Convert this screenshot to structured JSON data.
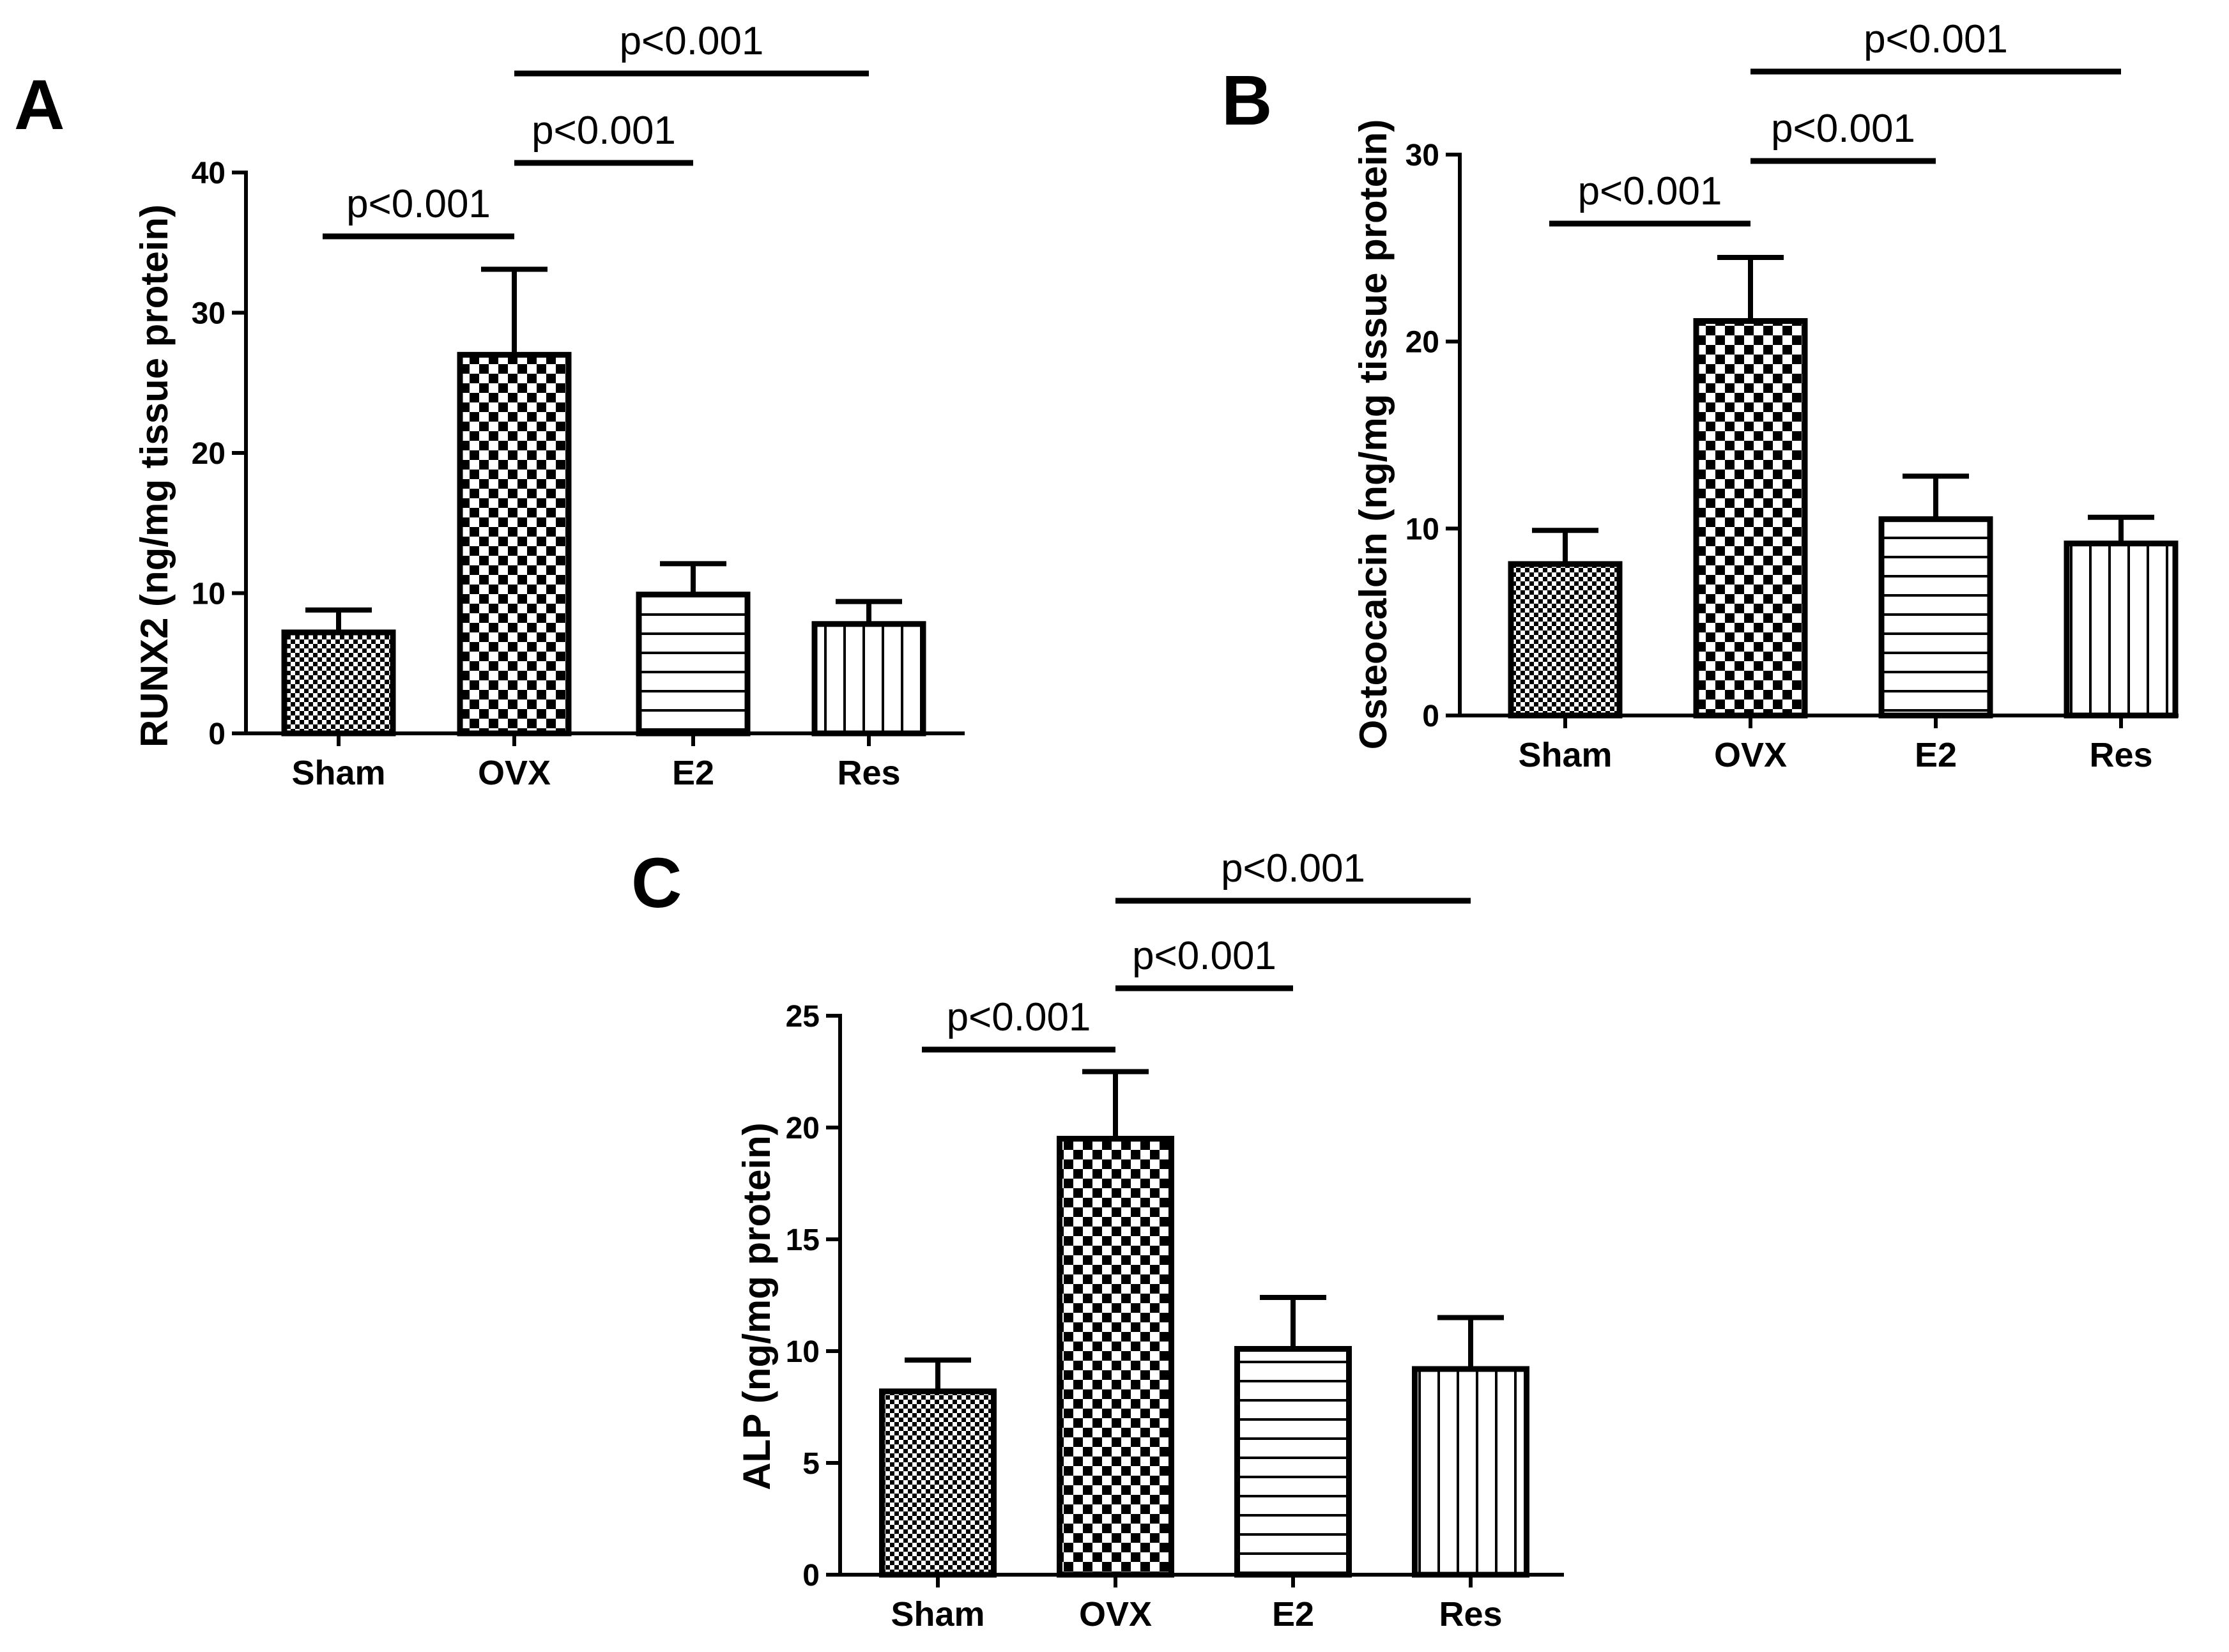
{
  "chart_data": [
    {
      "id": "A",
      "type": "bar",
      "panel_label": "A",
      "ylabel": "RUNX2 (ng/mg tissue protein)",
      "xlabel": "",
      "categories": [
        "Sham",
        "OVX",
        "E2",
        "Res"
      ],
      "values": [
        7.2,
        27.0,
        9.9,
        7.8
      ],
      "errors": [
        1.6,
        6.1,
        2.2,
        1.6
      ],
      "ylim": [
        0,
        40
      ],
      "yticks": [
        0,
        10,
        20,
        30,
        40
      ],
      "patterns": [
        "fine-check",
        "coarse-check",
        "h-lines",
        "v-lines"
      ],
      "significance": [
        {
          "from": 0,
          "to": 1,
          "label": "p<0.001"
        },
        {
          "from": 1,
          "to": 2,
          "label": "p<0.001"
        },
        {
          "from": 1,
          "to": 3,
          "label": "p<0.001"
        }
      ]
    },
    {
      "id": "B",
      "type": "bar",
      "panel_label": "B",
      "ylabel": "Osteocalcin (ng/mg tissue protein)",
      "xlabel": "",
      "categories": [
        "Sham",
        "OVX",
        "E2",
        "Res"
      ],
      "values": [
        8.1,
        21.1,
        10.5,
        9.2
      ],
      "errors": [
        1.8,
        3.4,
        2.3,
        1.4
      ],
      "ylim": [
        0,
        30
      ],
      "yticks": [
        0,
        10,
        20,
        30
      ],
      "patterns": [
        "fine-check",
        "coarse-check",
        "h-lines",
        "v-lines"
      ],
      "significance": [
        {
          "from": 0,
          "to": 1,
          "label": "p<0.001"
        },
        {
          "from": 1,
          "to": 2,
          "label": "p<0.001"
        },
        {
          "from": 1,
          "to": 3,
          "label": "p<0.001"
        }
      ]
    },
    {
      "id": "C",
      "type": "bar",
      "panel_label": "C",
      "ylabel": "ALP (ng/mg protein)",
      "xlabel": "",
      "categories": [
        "Sham",
        "OVX",
        "E2",
        "Res"
      ],
      "values": [
        8.2,
        19.5,
        10.1,
        9.2
      ],
      "errors": [
        1.4,
        3.0,
        2.3,
        2.3
      ],
      "ylim": [
        0,
        25
      ],
      "yticks": [
        0,
        5,
        10,
        15,
        20,
        25
      ],
      "patterns": [
        "fine-check",
        "coarse-check",
        "h-lines",
        "v-lines"
      ],
      "significance": [
        {
          "from": 0,
          "to": 1,
          "label": "p<0.001"
        },
        {
          "from": 1,
          "to": 2,
          "label": "p<0.001"
        },
        {
          "from": 1,
          "to": 3,
          "label": "p<0.001"
        }
      ]
    }
  ]
}
